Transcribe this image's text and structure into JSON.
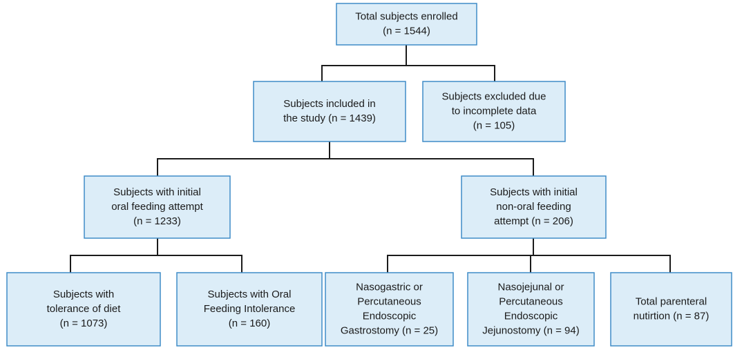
{
  "nodes": [
    {
      "lines": [
        "Total subjects enrolled",
        "(n = 1544)"
      ]
    },
    {
      "lines": [
        "Subjects included in",
        "the study (n = 1439)"
      ]
    },
    {
      "lines": [
        "Subjects excluded due",
        "to incomplete data",
        "(n = 105)"
      ]
    },
    {
      "lines": [
        "Subjects with initial",
        "oral feeding attempt",
        "(n = 1233)"
      ]
    },
    {
      "lines": [
        "Subjects with initial",
        "non-oral feeding",
        "attempt (n = 206)"
      ]
    },
    {
      "lines": [
        "Subjects with",
        "tolerance of diet",
        "(n = 1073)"
      ]
    },
    {
      "lines": [
        "Subjects with Oral",
        "Feeding Intolerance",
        "(n = 160)"
      ]
    },
    {
      "lines": [
        "Nasogastric or",
        "Percutaneous",
        "Endoscopic",
        "Gastrostomy (n = 25)"
      ]
    },
    {
      "lines": [
        "Nasojejunal or",
        "Percutaneous",
        "Endoscopic",
        "Jejunostomy (n = 94)"
      ]
    },
    {
      "lines": [
        "Total parenteral",
        "nutirtion (n = 87)"
      ]
    }
  ]
}
